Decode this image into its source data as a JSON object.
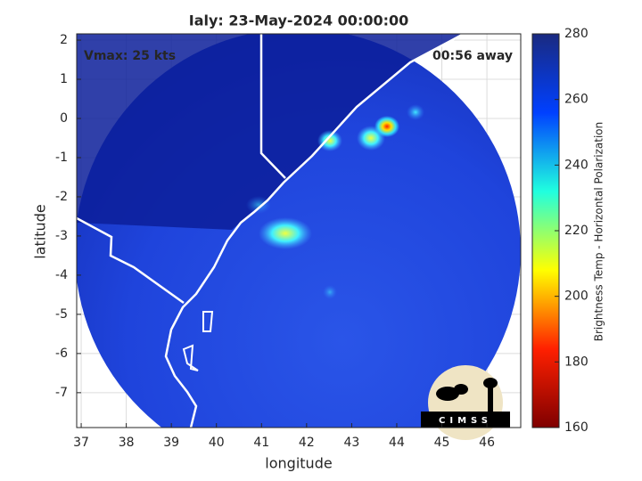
{
  "title": "Ialy: 23-May-2024 00:00:00",
  "annotations": [
    "Vmax: 25 kts",
    "00:56 away"
  ],
  "map": {
    "xlabel": "longitude",
    "ylabel": "latitude",
    "xlim": [
      36.9,
      46.75
    ],
    "ylim": [
      -7.89,
      2.16
    ],
    "xticks": [
      37,
      38,
      39,
      40,
      41,
      42,
      43,
      44,
      45,
      46
    ],
    "yticks": [
      -7,
      -6,
      -5,
      -4,
      -3,
      -2,
      -1,
      0,
      1,
      2
    ],
    "grid": true
  },
  "colorbar": {
    "label": "Brightness Temp - Horizontal Polarization",
    "lim": [
      160,
      280
    ],
    "ticks": [
      160,
      180,
      200,
      220,
      240,
      260,
      280
    ],
    "colormap": [
      "#7f0000",
      "#ff2000",
      "#ffff00",
      "#20ffdf",
      "#0040ff",
      "#1a2a80"
    ]
  },
  "logo": "CIMSS"
}
